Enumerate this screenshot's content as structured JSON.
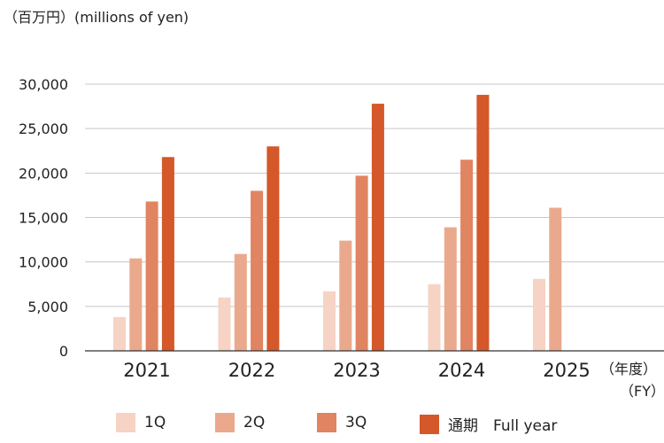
{
  "unit_label": "（百万円）(millions of yen)",
  "fy_label_jp": "（年度）",
  "fy_label_en": "（FY）",
  "colors": {
    "q1": "#f6d3c4",
    "q2": "#eaa98c",
    "q3": "#e18462",
    "full": "#d4582a",
    "grid": "#c8c8c8",
    "axis": "#333333"
  },
  "legend": [
    {
      "label": "1Q",
      "color_key": "q1"
    },
    {
      "label": "2Q",
      "color_key": "q2"
    },
    {
      "label": "3Q",
      "color_key": "q3"
    },
    {
      "label": "通期　Full year",
      "color_key": "full"
    }
  ],
  "chart_data": {
    "type": "bar",
    "categories": [
      "2021",
      "2022",
      "2023",
      "2024",
      "2025"
    ],
    "series": [
      {
        "name": "1Q",
        "color_key": "q1",
        "values": [
          3800,
          6000,
          6700,
          7500,
          8100
        ]
      },
      {
        "name": "2Q",
        "color_key": "q2",
        "values": [
          10400,
          10900,
          12400,
          13900,
          16100
        ]
      },
      {
        "name": "3Q",
        "color_key": "q3",
        "values": [
          16800,
          18000,
          19700,
          21500,
          null
        ]
      },
      {
        "name": "通期　Full year",
        "color_key": "full",
        "values": [
          21800,
          23000,
          27800,
          28800,
          null
        ]
      }
    ],
    "yticks": [
      0,
      5000,
      10000,
      15000,
      20000,
      25000,
      30000
    ],
    "ytick_labels": [
      "0",
      "5,000",
      "10,000",
      "15,000",
      "20,000",
      "25,000",
      "30,000"
    ],
    "ylim": [
      0,
      30000
    ],
    "grid": true,
    "legend_position": "bottom"
  }
}
